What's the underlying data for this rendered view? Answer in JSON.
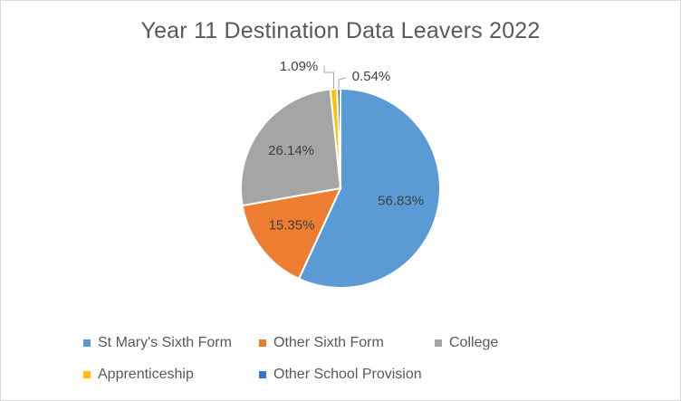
{
  "chart_data": {
    "type": "pie",
    "title": "Year 11 Destination Data Leavers 2022",
    "categories": [
      "St Mary's Sixth Form",
      "Other Sixth Form",
      "College",
      "Apprenticeship",
      "Other School Provision"
    ],
    "values": [
      56.83,
      15.35,
      26.14,
      1.09,
      0.54
    ],
    "labels": [
      "56.83%",
      "15.35%",
      "26.14%",
      "1.09%",
      "0.54%"
    ],
    "colors": [
      "#5b9bd5",
      "#ed7d31",
      "#a5a5a5",
      "#ffc000",
      "#4472c4"
    ],
    "legend_position": "bottom"
  }
}
